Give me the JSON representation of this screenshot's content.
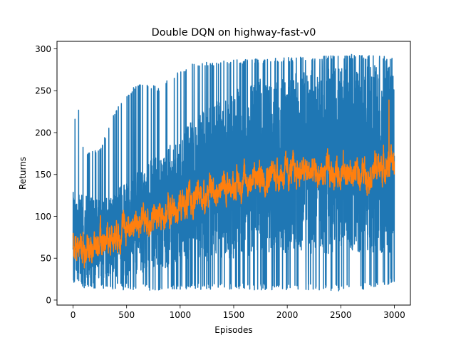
{
  "chart_data": {
    "type": "line",
    "title": "Double DQN on highway-fast-v0",
    "xlabel": "Episodes",
    "ylabel": "Returns",
    "xlim": [
      -150,
      3150
    ],
    "ylim": [
      -6,
      309
    ],
    "xticks": [
      0,
      500,
      1000,
      1500,
      2000,
      2500,
      3000
    ],
    "xtick_labels": [
      "0",
      "500",
      "1000",
      "1500",
      "2000",
      "2500",
      "3000"
    ],
    "yticks": [
      0,
      50,
      100,
      150,
      200,
      250,
      300
    ],
    "ytick_labels": [
      "0",
      "50",
      "100",
      "150",
      "200",
      "250",
      "300"
    ],
    "grid": false,
    "legend": "none",
    "series": [
      {
        "color": "#1f77b4",
        "x_start": 0,
        "x_end": 3000,
        "samples": 3001,
        "lower_envelope": {
          "x": [
            0,
            250,
            500,
            750,
            1000,
            1250,
            1500,
            1750,
            2000,
            2250,
            2500,
            2750,
            3000
          ],
          "y": [
            16,
            13,
            12,
            11,
            12,
            12,
            13,
            12,
            12,
            11,
            11,
            13,
            20
          ]
        },
        "upper_envelope": {
          "x": [
            0,
            60,
            100,
            250,
            400,
            600,
            800,
            950,
            1100,
            1300,
            1500,
            1700,
            2000,
            2300,
            2550,
            2800,
            3000
          ],
          "y": [
            212,
            232,
            175,
            180,
            230,
            260,
            255,
            270,
            282,
            285,
            287,
            288,
            290,
            291,
            294,
            292,
            290
          ]
        },
        "typical_range": {
          "x": [
            0,
            250,
            500,
            750,
            1000,
            1250,
            1500,
            1750,
            2000,
            2250,
            2500,
            2750,
            3000
          ],
          "low": [
            25,
            25,
            28,
            35,
            40,
            45,
            50,
            55,
            55,
            55,
            55,
            55,
            50
          ],
          "high": [
            130,
            120,
            140,
            170,
            200,
            230,
            250,
            265,
            270,
            275,
            278,
            280,
            280
          ]
        }
      },
      {
        "color": "#ff7f0e",
        "x_start": 0,
        "x_end": 3000,
        "samples": 3001,
        "trend": {
          "x": [
            0,
            100,
            200,
            300,
            400,
            500,
            600,
            700,
            800,
            900,
            1000,
            1100,
            1200,
            1300,
            1400,
            1500,
            1600,
            1700,
            1800,
            1900,
            2000,
            2100,
            2200,
            2300,
            2400,
            2500,
            2600,
            2700,
            2800,
            2900,
            3000
          ],
          "y": [
            68,
            62,
            65,
            72,
            80,
            88,
            92,
            96,
            100,
            105,
            112,
            118,
            125,
            130,
            135,
            138,
            142,
            145,
            150,
            152,
            150,
            155,
            152,
            150,
            152,
            155,
            150,
            152,
            155,
            160,
            162
          ]
        },
        "min_value": 30,
        "max_value": 239,
        "peak_x": 2950
      }
    ]
  }
}
